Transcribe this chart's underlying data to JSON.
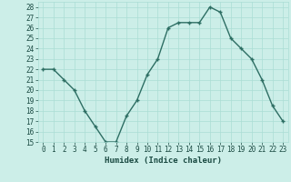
{
  "x": [
    0,
    1,
    2,
    3,
    4,
    5,
    6,
    7,
    8,
    9,
    10,
    11,
    12,
    13,
    14,
    15,
    16,
    17,
    18,
    19,
    20,
    21,
    22,
    23
  ],
  "y": [
    22,
    22,
    21,
    20,
    18,
    16.5,
    15,
    15,
    17.5,
    19,
    21.5,
    23,
    26,
    26.5,
    26.5,
    26.5,
    28,
    27.5,
    25,
    24,
    23,
    21,
    18.5,
    17
  ],
  "line_color": "#2d6e63",
  "marker": "+",
  "marker_size": 3.5,
  "marker_edge_width": 1.0,
  "background_color": "#cceee8",
  "grid_color": "#aaddd5",
  "xlabel": "Humidex (Indice chaleur)",
  "xlim": [
    -0.5,
    23.5
  ],
  "ylim": [
    15,
    28.5
  ],
  "yticks": [
    15,
    16,
    17,
    18,
    19,
    20,
    21,
    22,
    23,
    24,
    25,
    26,
    27,
    28
  ],
  "xticks": [
    0,
    1,
    2,
    3,
    4,
    5,
    6,
    7,
    8,
    9,
    10,
    11,
    12,
    13,
    14,
    15,
    16,
    17,
    18,
    19,
    20,
    21,
    22,
    23
  ],
  "xtick_labels": [
    "0",
    "1",
    "2",
    "3",
    "4",
    "5",
    "6",
    "7",
    "8",
    "9",
    "10",
    "11",
    "12",
    "13",
    "14",
    "15",
    "16",
    "17",
    "18",
    "19",
    "20",
    "21",
    "22",
    "23"
  ],
  "tick_fontsize": 5.5,
  "xlabel_fontsize": 6.5,
  "line_width": 1.0
}
